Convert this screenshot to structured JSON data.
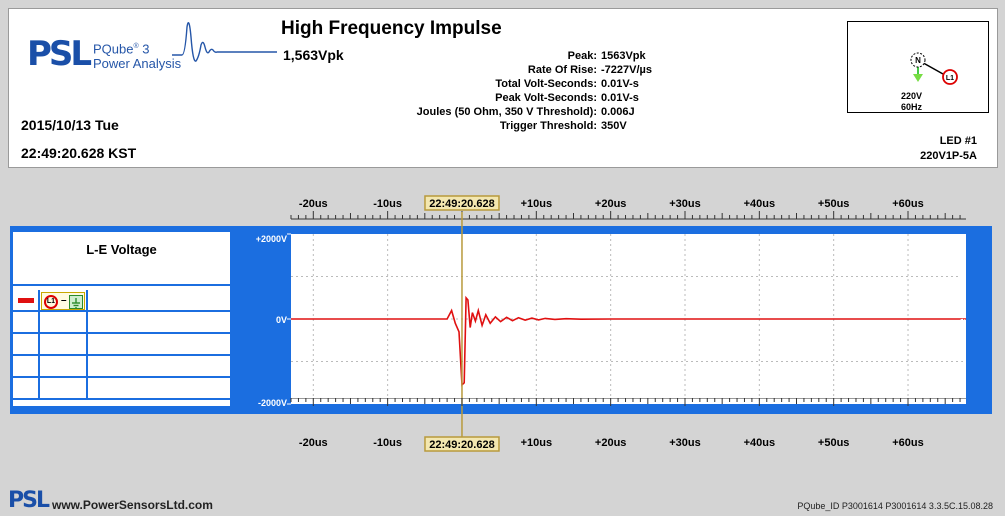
{
  "header": {
    "logo_brand": "PSL",
    "logo_product": "PQube",
    "logo_product_sup": "®",
    "logo_product_num": "3",
    "logo_subtitle": "Power Analysis",
    "date": "2015/10/13 Tue",
    "time": "22:49:20.628 KST",
    "title": "High Frequency Impulse",
    "peak_summary": "1,563Vpk",
    "stats": [
      {
        "label": "Peak:",
        "value": "1563Vpk"
      },
      {
        "label": "Rate Of Rise:",
        "value": "-7227V/µs"
      },
      {
        "label": "Total Volt-Seconds:",
        "value": "0.01V-s"
      },
      {
        "label": "Peak Volt-Seconds:",
        "value": "0.01V-s"
      },
      {
        "label": "Joules (50 Ohm, 350 V Threshold):",
        "value": "0.006J"
      },
      {
        "label": "Trigger Threshold:",
        "value": "350V"
      }
    ],
    "config": {
      "node_n": "N",
      "node_l1": "L1",
      "voltage": "220V",
      "frequency": "60Hz"
    },
    "led": "LED #1",
    "model": "220V1P-5A"
  },
  "legend": {
    "title": "L-E Voltage",
    "series_chip": {
      "line": "L1",
      "sep": "–"
    }
  },
  "colors": {
    "panel_blue": "#1b6ee0",
    "trace_red": "#e01010",
    "cursor_gold": "#b89a3c"
  },
  "chart_data": {
    "type": "line",
    "title": "L-E Voltage",
    "x_ticks": [
      "-20us",
      "-10us",
      "0",
      "+10us",
      "+20us",
      "+30us",
      "+40us",
      "+50us",
      "+60us"
    ],
    "x_tick_values": [
      -20,
      -10,
      0,
      10,
      20,
      30,
      40,
      50,
      60
    ],
    "xlim": [
      -23,
      67.8
    ],
    "y_ticks": [
      "+2000V",
      "0V",
      "-2000V"
    ],
    "y_tick_values": [
      2000,
      0,
      -2000
    ],
    "ylim": [
      -2000,
      2000
    ],
    "cursor": {
      "x": 0,
      "label": "22:49:20.628"
    },
    "series": [
      {
        "x": [
          -23,
          -2.0,
          -1.4,
          -0.9,
          -0.4,
          0.0,
          0.3,
          0.55,
          0.8,
          1.1,
          1.4,
          1.8,
          2.2,
          2.7,
          3.2,
          3.8,
          4.5,
          5.2,
          6.0,
          6.8,
          7.6,
          8.5,
          9.4,
          10.3,
          11.2,
          12.5,
          14,
          16,
          20,
          30,
          40,
          50,
          60,
          67.8
        ],
        "values": [
          0,
          0,
          200,
          -100,
          -300,
          -1550,
          -1500,
          500,
          450,
          -200,
          150,
          -50,
          200,
          -150,
          100,
          -100,
          50,
          -60,
          40,
          -40,
          30,
          -25,
          20,
          -20,
          15,
          -10,
          8,
          -5,
          0,
          0,
          0,
          0,
          0,
          0
        ]
      }
    ]
  },
  "watermark": "www.PowerSensorsLtd.com",
  "footer": {
    "brand": "PSL",
    "url": "www.PowerSensorsLtd.com",
    "ids": "PQube_ID P3001614   P3001614  3.3.5C.15.08.28"
  }
}
